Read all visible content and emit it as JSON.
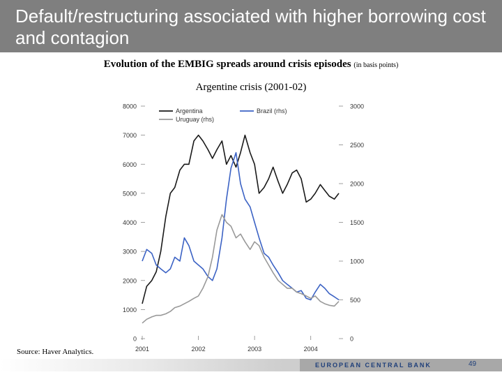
{
  "header": {
    "title": "Default/restructuring associated with higher borrowing cost and contagion"
  },
  "subtitle": {
    "main": "Evolution of the EMBIG spreads around crisis episodes",
    "unit": "(in basis points)"
  },
  "chart_data": {
    "type": "line",
    "title": "Argentine crisis (2001-02)",
    "x_ticks": [
      "2001",
      "2002",
      "2003",
      "2004"
    ],
    "x_range": [
      2001.0,
      2004.55
    ],
    "y_left": {
      "range": [
        0,
        8000
      ],
      "ticks": [
        0,
        1000,
        2000,
        3000,
        4000,
        5000,
        6000,
        7000,
        8000
      ]
    },
    "y_right": {
      "range": [
        0,
        3000
      ],
      "ticks": [
        0,
        500,
        1000,
        1500,
        2000,
        2500,
        3000
      ]
    },
    "legend": {
      "position": "top",
      "entries": [
        "Argentina",
        "Brazil (rhs)",
        "Uruguay (rhs)"
      ]
    },
    "series": [
      {
        "name": "Argentina",
        "axis": "left",
        "color": "#1a1a1a",
        "x": [
          2001.0,
          2001.08,
          2001.17,
          2001.25,
          2001.33,
          2001.42,
          2001.5,
          2001.58,
          2001.67,
          2001.75,
          2001.83,
          2001.92,
          2002.0,
          2002.08,
          2002.17,
          2002.25,
          2002.33,
          2002.42,
          2002.5,
          2002.58,
          2002.67,
          2002.75,
          2002.83,
          2002.92,
          2003.0,
          2003.08,
          2003.17,
          2003.25,
          2003.33,
          2003.42,
          2003.5,
          2003.58,
          2003.67,
          2003.75,
          2003.83,
          2003.92,
          2004.0,
          2004.08,
          2004.17,
          2004.25,
          2004.33,
          2004.42,
          2004.5
        ],
        "y": [
          1200,
          1800,
          2000,
          2300,
          3000,
          4200,
          5000,
          5200,
          5800,
          6000,
          6000,
          6800,
          7000,
          6800,
          6500,
          6200,
          6500,
          6800,
          6000,
          6300,
          5900,
          6400,
          7000,
          6400,
          6000,
          5000,
          5200,
          5500,
          5900,
          5400,
          5000,
          5300,
          5700,
          5800,
          5500,
          4700,
          4800,
          5000,
          5300,
          5100,
          4900,
          4800,
          5000
        ]
      },
      {
        "name": "Brazil (rhs)",
        "axis": "right",
        "color": "#3b62c4",
        "x": [
          2001.0,
          2001.08,
          2001.17,
          2001.25,
          2001.33,
          2001.42,
          2001.5,
          2001.58,
          2001.67,
          2001.75,
          2001.83,
          2001.92,
          2002.0,
          2002.08,
          2002.17,
          2002.25,
          2002.33,
          2002.42,
          2002.5,
          2002.58,
          2002.67,
          2002.75,
          2002.83,
          2002.92,
          2003.0,
          2003.08,
          2003.17,
          2003.25,
          2003.33,
          2003.42,
          2003.5,
          2003.58,
          2003.67,
          2003.75,
          2003.83,
          2003.92,
          2004.0,
          2004.08,
          2004.17,
          2004.25,
          2004.33,
          2004.42,
          2004.5
        ],
        "y": [
          1000,
          1150,
          1100,
          950,
          900,
          850,
          900,
          1050,
          1000,
          1300,
          1200,
          1000,
          950,
          900,
          800,
          750,
          900,
          1300,
          1800,
          2200,
          2400,
          2000,
          1800,
          1700,
          1500,
          1300,
          1100,
          1050,
          950,
          850,
          750,
          700,
          650,
          600,
          620,
          520,
          500,
          600,
          700,
          650,
          580,
          540,
          500
        ]
      },
      {
        "name": "Uruguay (rhs)",
        "axis": "right",
        "color": "#999999",
        "x": [
          2001.0,
          2001.08,
          2001.17,
          2001.25,
          2001.33,
          2001.42,
          2001.5,
          2001.58,
          2001.67,
          2001.75,
          2001.83,
          2001.92,
          2002.0,
          2002.08,
          2002.17,
          2002.25,
          2002.33,
          2002.42,
          2002.5,
          2002.58,
          2002.67,
          2002.75,
          2002.83,
          2002.92,
          2003.0,
          2003.08,
          2003.17,
          2003.25,
          2003.33,
          2003.42,
          2003.5,
          2003.58,
          2003.67,
          2003.75,
          2003.83,
          2003.92,
          2004.0,
          2004.08,
          2004.17,
          2004.25,
          2004.33,
          2004.42,
          2004.5
        ],
        "y": [
          200,
          250,
          280,
          300,
          300,
          320,
          350,
          400,
          420,
          450,
          480,
          520,
          550,
          650,
          800,
          1050,
          1400,
          1600,
          1500,
          1450,
          1300,
          1350,
          1250,
          1150,
          1250,
          1200,
          1050,
          950,
          850,
          750,
          700,
          650,
          650,
          600,
          580,
          550,
          520,
          550,
          480,
          450,
          430,
          420,
          480
        ]
      }
    ]
  },
  "footer": {
    "source": "Source: Haver Analytics.",
    "bank": "EUROPEAN CENTRAL BANK",
    "page": "49"
  }
}
